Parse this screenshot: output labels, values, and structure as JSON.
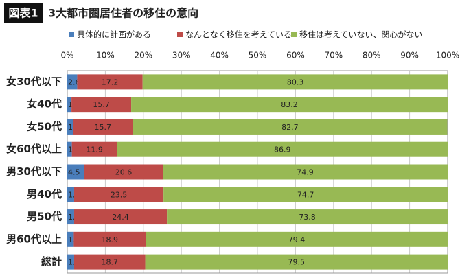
{
  "chart_data": {
    "type": "stacked-bar-horizontal",
    "figure_label": "図表1",
    "title": "3大都市圏居住者の移住の意向",
    "categories": [
      "女30代以下",
      "女40代",
      "女50代",
      "女60代以上",
      "男30代以下",
      "男40代",
      "男50代",
      "男60代以上",
      "総計"
    ],
    "series": [
      {
        "name": "具体的に計画がある",
        "color": "#4a7ebb",
        "values": [
          2.6,
          1.1,
          1.5,
          1.2,
          4.5,
          1.8,
          1.8,
          1.7,
          1.8
        ]
      },
      {
        "name": "なんとなく移住を考えている",
        "color": "#be4b48",
        "values": [
          17.2,
          15.7,
          15.7,
          11.9,
          20.6,
          23.5,
          24.4,
          18.9,
          18.7
        ]
      },
      {
        "name": "移住は考えていない、関心がない",
        "color": "#98b954",
        "values": [
          80.3,
          83.2,
          82.7,
          86.9,
          74.9,
          74.7,
          73.8,
          79.4,
          79.5
        ]
      }
    ],
    "xlim": [
      0,
      100
    ],
    "xticks": [
      {
        "value": 0,
        "label": "0%"
      },
      {
        "value": 10,
        "label": "10%"
      },
      {
        "value": 20,
        "label": "20%"
      },
      {
        "value": 30,
        "label": "30%"
      },
      {
        "value": 40,
        "label": "40%"
      },
      {
        "value": 50,
        "label": "50%"
      },
      {
        "value": 60,
        "label": "60%"
      },
      {
        "value": 70,
        "label": "70%"
      },
      {
        "value": 80,
        "label": "80%"
      },
      {
        "value": 90,
        "label": "90%"
      },
      {
        "value": 100,
        "label": "100%"
      }
    ],
    "grid": true
  }
}
